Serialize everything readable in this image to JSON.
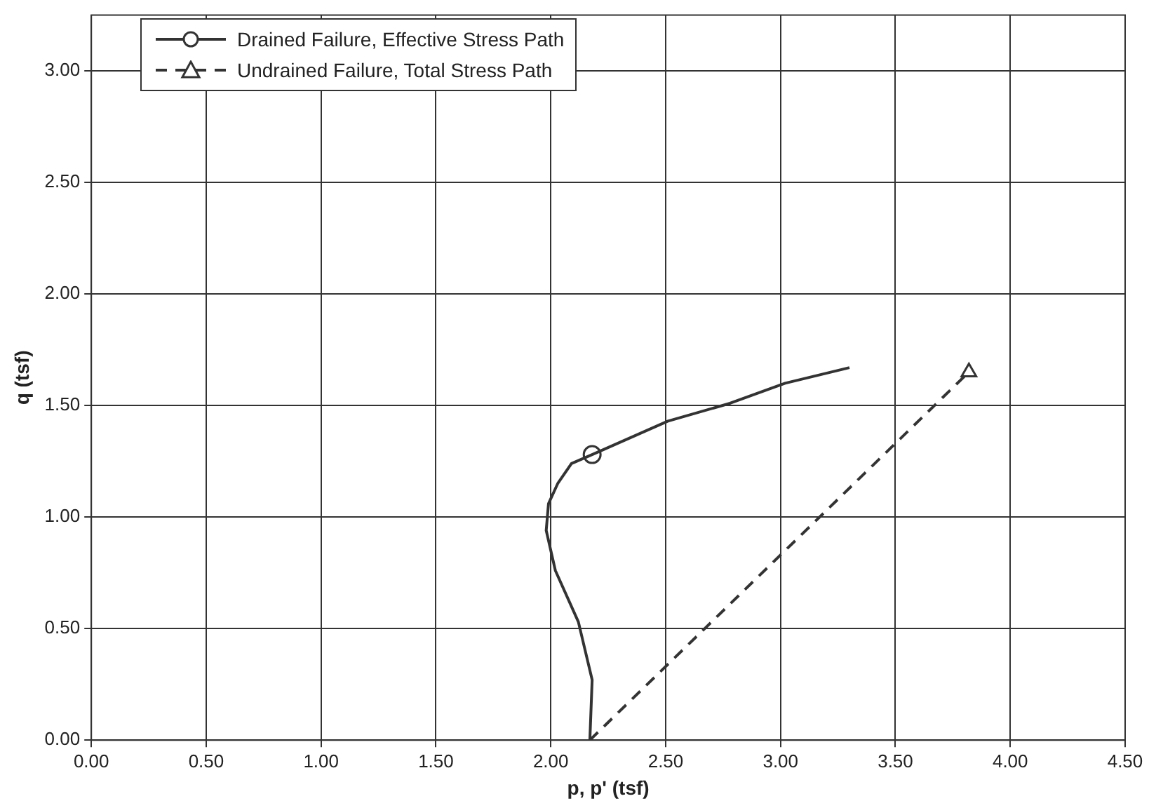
{
  "chart_data": {
    "type": "line",
    "xlabel": "p, p' (tsf)",
    "ylabel": "q (tsf)",
    "xlim": [
      0,
      4.5
    ],
    "xticks": [
      {
        "value": 0,
        "label": "0.00"
      },
      {
        "value": 0.5,
        "label": "0.50"
      },
      {
        "value": 1,
        "label": "1.00"
      },
      {
        "value": 1.5,
        "label": "1.50"
      },
      {
        "value": 2,
        "label": "2.00"
      },
      {
        "value": 2.5,
        "label": "2.50"
      },
      {
        "value": 3,
        "label": "3.00"
      },
      {
        "value": 3.5,
        "label": "3.50"
      },
      {
        "value": 4,
        "label": "4.00"
      },
      {
        "value": 4.5,
        "label": "4.50"
      }
    ],
    "ylim": [
      0,
      3.25
    ],
    "yticks": [
      {
        "value": 0,
        "label": "0.00"
      },
      {
        "value": 0.5,
        "label": "0.50"
      },
      {
        "value": 1,
        "label": "1.00"
      },
      {
        "value": 1.5,
        "label": "1.50"
      },
      {
        "value": 2,
        "label": "2.00"
      },
      {
        "value": 2.5,
        "label": "2.50"
      },
      {
        "value": 3,
        "label": "3.00"
      }
    ],
    "grid": true,
    "legend": "top left",
    "series": [
      {
        "name": "Drained Failure, Effective Stress Path",
        "color": "#333333",
        "line_style": "solid",
        "marker": "none",
        "x": [
          2.17,
          2.18,
          2.12,
          2.02,
          1.98,
          1.99,
          2.03,
          2.09,
          2.18,
          2.51,
          2.78,
          3.02,
          3.3
        ],
        "values": [
          0,
          0.27,
          0.53,
          0.76,
          0.94,
          1.06,
          1.15,
          1.24,
          1.28,
          1.43,
          1.51,
          1.6,
          1.67
        ]
      },
      {
        "type": "scatter",
        "color": "#333333",
        "marker": "circle",
        "x": [
          2.18
        ],
        "values": [
          1.28
        ]
      },
      {
        "name": "Undrained Failure, Total Stress Path",
        "color": "#333333",
        "line_style": "dashed",
        "marker": "none",
        "x": [
          2.17,
          3.82
        ],
        "values": [
          0,
          1.65
        ]
      },
      {
        "type": "scatter",
        "color": "#333333",
        "marker": "triangle",
        "x": [
          3.82
        ],
        "values": [
          1.65
        ]
      }
    ]
  }
}
